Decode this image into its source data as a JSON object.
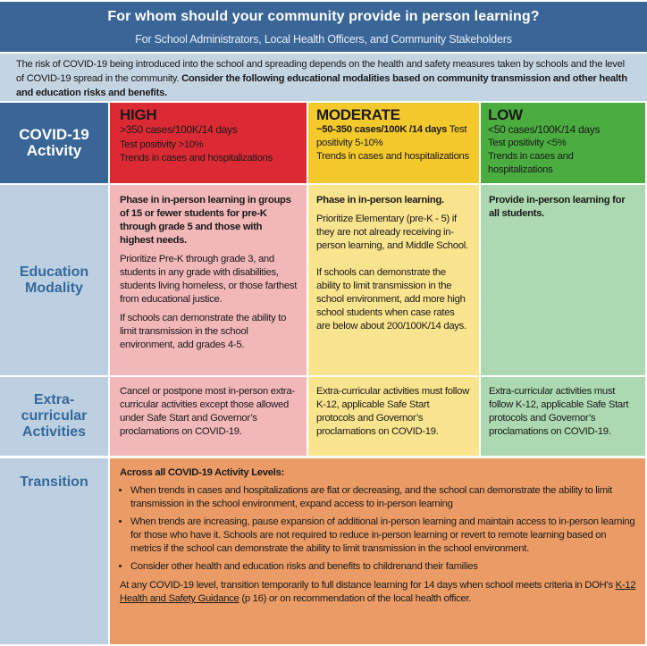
{
  "header": {
    "title": "For whom should your community provide in person learning?",
    "subtitle": "For School Administrators, Local Health Officers, and Community Stakeholders"
  },
  "intro": {
    "text": "The risk of COVID-19 being introduced into the school and spreading depends on the health and safety measures taken by schools and the level of COVID-19 spread in the community.",
    "bold": "Consider the following educational modalities based on community transmission and other health and education risks and benefits."
  },
  "colors": {
    "header": "#3a6597",
    "high": "#dc2a35",
    "moderate": "#f4c92c",
    "low": "#4bad40",
    "high_pale": "#f2b7b9",
    "moderate_pale": "#fbe48e",
    "low_pale": "#acd9b1",
    "transition": "#eb9c66",
    "row_head": "#bcd0e2"
  },
  "rows": {
    "activity": "COVID-19 Activity",
    "modality": "Education Modality",
    "extra": "Extra-curricular Activities",
    "transition": "Transition"
  },
  "levels": [
    {
      "name": "HIGH",
      "cases": ">350 cases/100K/14 days",
      "positivity": "Test positivity >10%",
      "trends": "Trends in cases and hospitalizations"
    },
    {
      "name": "MODERATE",
      "cases": "~50-350 cases/100K /14 days",
      "positivity": "Test positivity 5-10%",
      "trends": "Trends in cases and hospitalizations"
    },
    {
      "name": "LOW",
      "cases": "<50 cases/100K/14 days",
      "positivity": "Test positivity <5%",
      "trends": "Trends in cases and hospitalizations"
    }
  ],
  "modality": {
    "high": [
      "Phase in in-person learning in groups of 15 or fewer students for pre-K through grade 5 and those with highest needs.",
      "Prioritize Pre-K through grade 3, and students in any grade with disabilities, students living homeless, or those farthest from educational justice.",
      "If schools can demonstrate the ability to limit transmission in the school environment, add grades 4-5."
    ],
    "moderate": [
      "Phase in in-person learning.",
      "Prioritize Elementary (pre-K - 5) if they are not already receiving in-person learning, and Middle School.",
      "If schools can demonstrate the ability to limit transmission in the school environment, add more high school students when case rates are below about 200/100K/14 days."
    ],
    "low": [
      "Provide in-person learning for all students."
    ]
  },
  "extra": {
    "high": "Cancel or postpone most in-person extra-curricular activities except those allowed under Safe Start and Governor’s proclamations on COVID-19.",
    "moderate": "Extra-curricular activities must follow K-12, applicable Safe Start protocols and Governor’s proclamations on COVID-19.",
    "low": "Extra-curricular activities must follow K-12, applicable Safe Start protocols and Governor’s proclamations on COVID-19."
  },
  "transition": {
    "heading": "Across all COVID-19 Activity Levels:",
    "bullets": [
      "When trends in cases and hospitalizations are flat or decreasing, and the school can demonstrate the ability to limit transmission in the school environment, expand access to in-person learning",
      "When trends are increasing, pause expansion of additional in-person learning and maintain access to in-person learning for those who have it. Schools are not required to reduce in-person learning or revert to remote learning based on metrics if the school can demonstrate the ability to limit transmission in the school environment.",
      "Consider other health and education risks and benefits to childrenand their families"
    ],
    "footer_pre": "At any COVID-19 level, transition temporarily to full distance learning for 14 days when school meets criteria in DOH’s ",
    "footer_link": "K-12 Health and Safety Guidance",
    "footer_post": " (p 16) or on recommendation of the local health officer."
  }
}
